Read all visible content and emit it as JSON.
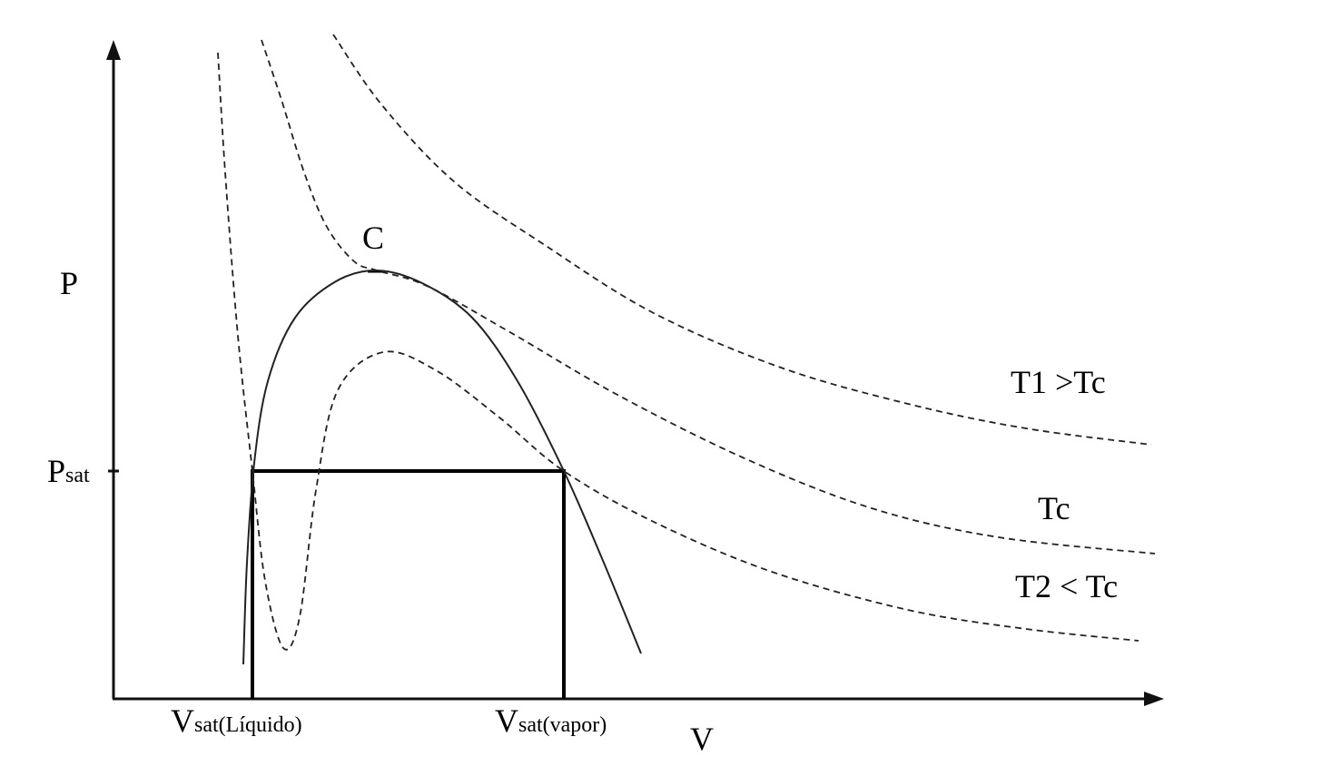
{
  "axes": {
    "y_label": "P",
    "x_label": "V"
  },
  "points": {
    "critical": "C",
    "p_sat": {
      "main": "P",
      "sub": "sat"
    },
    "v_sat_liquid": {
      "main": "V",
      "sub": "sat(Líquido)"
    },
    "v_sat_vapor": {
      "main": "V",
      "sub": "sat(vapor)"
    }
  },
  "isotherms": [
    "T1 >Tc",
    "Tc",
    "T2 < Tc"
  ]
}
